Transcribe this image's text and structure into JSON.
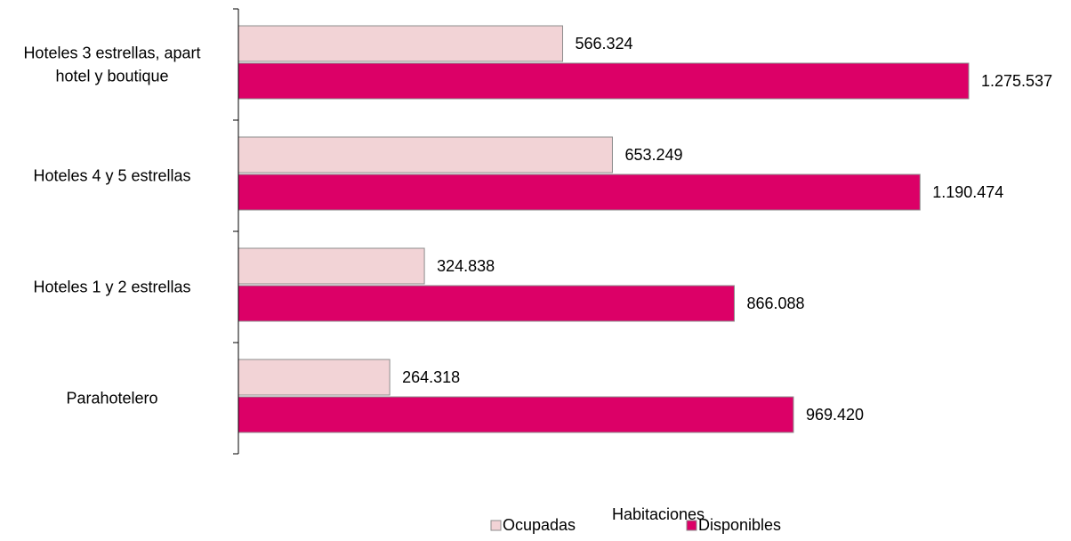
{
  "chart_data": {
    "type": "bar",
    "orientation": "horizontal",
    "categories": [
      "Hoteles 3 estrellas, apart hotel y boutique",
      "Hoteles 4 y 5 estrellas",
      "Hoteles 1 y 2 estrellas",
      "Parahotelero"
    ],
    "category_lines": [
      [
        "Hoteles 3 estrellas, apart",
        "hotel y boutique"
      ],
      [
        "Hoteles 4 y 5 estrellas"
      ],
      [
        "Hoteles 1 y 2 estrellas"
      ],
      [
        "Parahotelero"
      ]
    ],
    "series": [
      {
        "name": "Ocupadas",
        "color": "#f2d3d6",
        "values": [
          566324,
          653249,
          324838,
          264318
        ],
        "labels": [
          "566.324",
          "653.249",
          "324.838",
          "264.318"
        ]
      },
      {
        "name": "Disponibles",
        "color": "#dc0067",
        "values": [
          1275537,
          1190474,
          866088,
          969420
        ],
        "labels": [
          "1.275.537",
          "1.190.474",
          "866.088",
          "969.420"
        ]
      }
    ],
    "xlabel": "Habitaciones",
    "xlim": [
      0,
      1400000
    ],
    "grid": false,
    "legend_position": "bottom"
  }
}
